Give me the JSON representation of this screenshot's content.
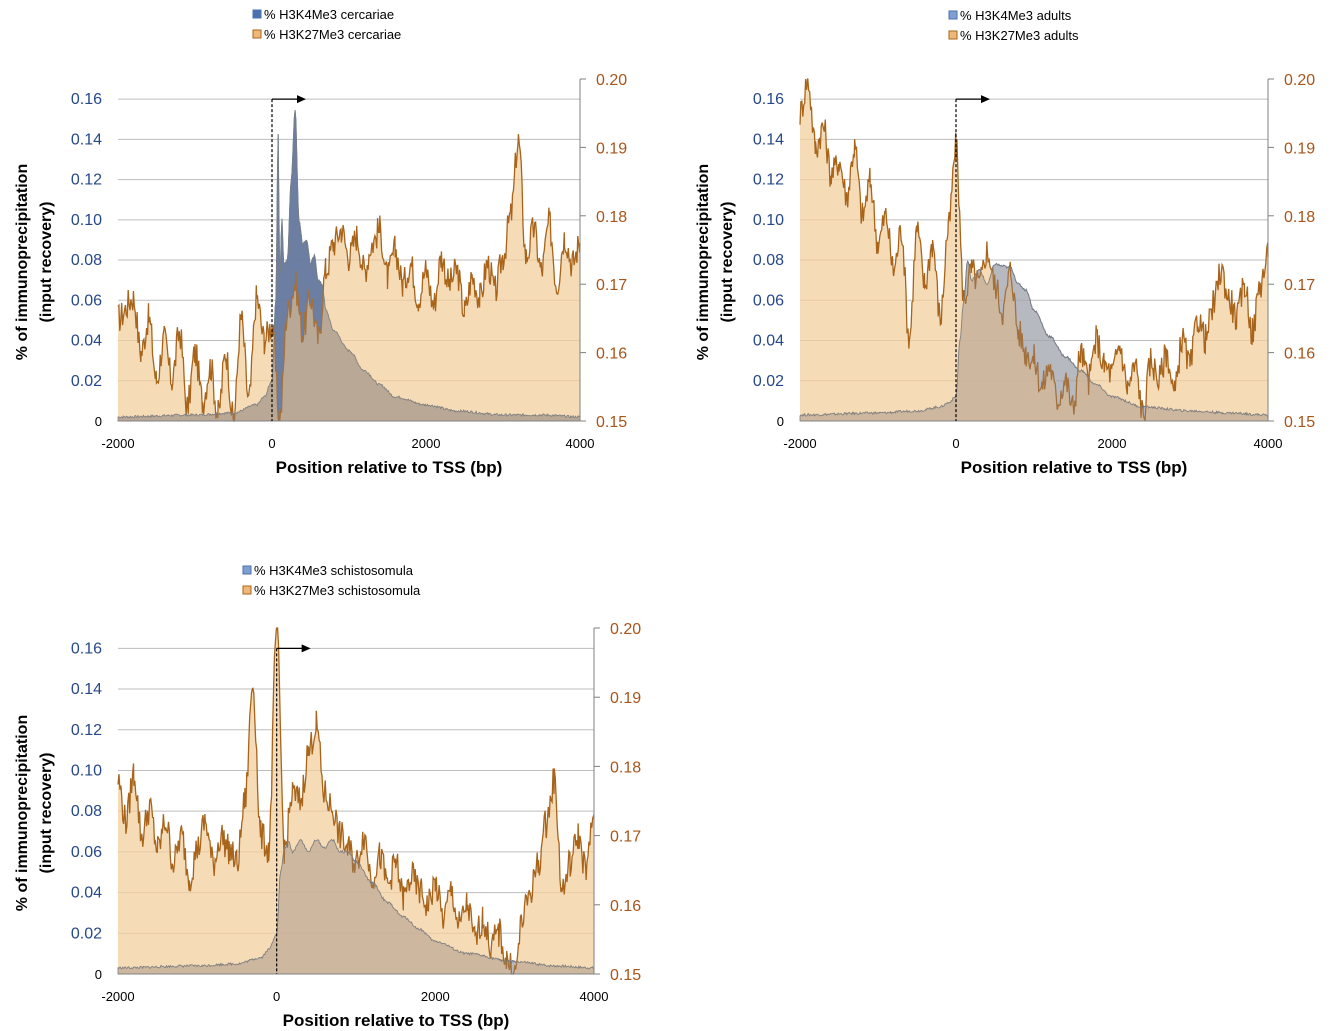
{
  "chart_data": [
    {
      "type": "area",
      "xlabel": "Position relative to TSS (bp)",
      "ylabel_line1": "% of immunoprecipitation",
      "ylabel_line2": "(input recovery)",
      "xlim": [
        -2000,
        4000
      ],
      "x_ticks": [
        "-2000",
        "0",
        "2000",
        "4000"
      ],
      "y_left_lim": [
        0,
        0.17
      ],
      "y_left_ticks": [
        "0",
        "0.02",
        "0.04",
        "0.06",
        "0.08",
        "0.10",
        "0.12",
        "0.14",
        "0.16"
      ],
      "y_right_lim": [
        0.15,
        0.2
      ],
      "y_right_ticks": [
        "0.15",
        "0.16",
        "0.17",
        "0.18",
        "0.19",
        "0.20"
      ],
      "grid": true,
      "legend_position": "top-center",
      "tss_arrow": true,
      "series": [
        {
          "name": "% H3K4Me3 cercariae",
          "axis": "left",
          "color": "#4a72b0",
          "fill": "#4a72b0",
          "x": [
            -2000,
            -1000,
            -500,
            -200,
            -100,
            0,
            50,
            80,
            100,
            130,
            150,
            200,
            250,
            300,
            350,
            400,
            450,
            500,
            550,
            600,
            650,
            700,
            800,
            1000,
            1200,
            1400,
            1600,
            2000,
            2400,
            3000,
            3500,
            4000
          ],
          "y": [
            0.002,
            0.003,
            0.004,
            0.008,
            0.012,
            0.02,
            0.06,
            0.143,
            0.07,
            0.1,
            0.078,
            0.08,
            0.12,
            0.155,
            0.1,
            0.088,
            0.09,
            0.078,
            0.082,
            0.07,
            0.068,
            0.055,
            0.045,
            0.035,
            0.025,
            0.018,
            0.012,
            0.008,
            0.005,
            0.003,
            0.003,
            0.002
          ]
        },
        {
          "name": "% H3K27Me3 cercariae",
          "axis": "right",
          "color": "#a8641a",
          "fill": "#f3cf9f",
          "x": [
            -2000,
            -1800,
            -1700,
            -1600,
            -1500,
            -1400,
            -1300,
            -1200,
            -1100,
            -1000,
            -900,
            -800,
            -700,
            -600,
            -500,
            -400,
            -300,
            -200,
            -100,
            0,
            100,
            200,
            300,
            400,
            500,
            600,
            700,
            800,
            900,
            1000,
            1100,
            1200,
            1300,
            1400,
            1500,
            1600,
            1700,
            1800,
            1900,
            2000,
            2100,
            2200,
            2300,
            2400,
            2500,
            2600,
            2700,
            2800,
            2900,
            3000,
            3100,
            3200,
            3300,
            3400,
            3500,
            3600,
            3700,
            3800,
            3900,
            4000
          ],
          "y": [
            0.165,
            0.168,
            0.16,
            0.165,
            0.156,
            0.162,
            0.156,
            0.163,
            0.152,
            0.16,
            0.153,
            0.158,
            0.151,
            0.16,
            0.15,
            0.165,
            0.153,
            0.168,
            0.162,
            0.164,
            0.15,
            0.166,
            0.17,
            0.163,
            0.168,
            0.162,
            0.172,
            0.176,
            0.178,
            0.174,
            0.177,
            0.172,
            0.176,
            0.178,
            0.171,
            0.175,
            0.17,
            0.173,
            0.168,
            0.172,
            0.167,
            0.174,
            0.17,
            0.172,
            0.166,
            0.171,
            0.168,
            0.173,
            0.169,
            0.174,
            0.18,
            0.191,
            0.174,
            0.178,
            0.172,
            0.179,
            0.17,
            0.177,
            0.173,
            0.176
          ]
        }
      ]
    },
    {
      "type": "area",
      "xlabel": "Position relative to TSS (bp)",
      "ylabel_line1": "% of immunoprecipitation",
      "ylabel_line2": "(input recovery)",
      "xlim": [
        -2000,
        4000
      ],
      "x_ticks": [
        "-2000",
        "0",
        "2000",
        "4000"
      ],
      "y_left_lim": [
        0,
        0.17
      ],
      "y_left_ticks": [
        "0",
        "0.02",
        "0.04",
        "0.06",
        "0.08",
        "0.10",
        "0.12",
        "0.14",
        "0.16"
      ],
      "y_right_lim": [
        0.15,
        0.2
      ],
      "y_right_ticks": [
        "0.15",
        "0.16",
        "0.17",
        "0.18",
        "0.19",
        "0.20"
      ],
      "grid": true,
      "legend_position": "top-center",
      "tss_arrow": true,
      "series": [
        {
          "name": "% H3K4Me3 adults",
          "axis": "left",
          "color": "#4a72b0",
          "fill": "#a9bcd6",
          "x": [
            -2000,
            -1000,
            -500,
            -200,
            -100,
            0,
            50,
            100,
            150,
            200,
            300,
            400,
            500,
            600,
            700,
            800,
            900,
            1000,
            1200,
            1400,
            1600,
            1800,
            2000,
            2400,
            3000,
            3500,
            4000
          ],
          "y": [
            0.003,
            0.004,
            0.005,
            0.007,
            0.009,
            0.012,
            0.04,
            0.06,
            0.08,
            0.07,
            0.075,
            0.068,
            0.078,
            0.077,
            0.076,
            0.068,
            0.065,
            0.055,
            0.042,
            0.032,
            0.025,
            0.018,
            0.012,
            0.007,
            0.005,
            0.004,
            0.003
          ]
        },
        {
          "name": "% H3K27Me3 adults",
          "axis": "right",
          "color": "#a8641a",
          "fill": "#f3cf9f",
          "x": [
            -2000,
            -1900,
            -1800,
            -1700,
            -1600,
            -1500,
            -1400,
            -1300,
            -1200,
            -1100,
            -1000,
            -900,
            -800,
            -700,
            -600,
            -500,
            -400,
            -300,
            -200,
            -100,
            0,
            100,
            200,
            300,
            400,
            500,
            600,
            700,
            800,
            900,
            1000,
            1100,
            1200,
            1300,
            1400,
            1500,
            1600,
            1700,
            1800,
            1900,
            2000,
            2100,
            2200,
            2300,
            2400,
            2500,
            2600,
            2700,
            2800,
            2900,
            3000,
            3100,
            3200,
            3300,
            3400,
            3500,
            3600,
            3700,
            3800,
            3900,
            4000
          ],
          "y": [
            0.195,
            0.2,
            0.19,
            0.193,
            0.186,
            0.188,
            0.183,
            0.19,
            0.18,
            0.185,
            0.176,
            0.18,
            0.172,
            0.178,
            0.162,
            0.178,
            0.17,
            0.176,
            0.165,
            0.178,
            0.19,
            0.168,
            0.172,
            0.17,
            0.175,
            0.17,
            0.166,
            0.172,
            0.163,
            0.16,
            0.159,
            0.155,
            0.158,
            0.153,
            0.156,
            0.152,
            0.16,
            0.156,
            0.162,
            0.158,
            0.157,
            0.161,
            0.155,
            0.158,
            0.151,
            0.159,
            0.156,
            0.16,
            0.154,
            0.162,
            0.158,
            0.165,
            0.162,
            0.167,
            0.172,
            0.168,
            0.165,
            0.17,
            0.163,
            0.17,
            0.174
          ]
        }
      ]
    },
    {
      "type": "area",
      "xlabel": "Position relative to TSS (bp)",
      "ylabel_line1": "% of immunoprecipitation",
      "ylabel_line2": "(input recovery)",
      "xlim": [
        -2000,
        4000
      ],
      "x_ticks": [
        "-2000",
        "0",
        "2000",
        "4000"
      ],
      "y_left_lim": [
        0,
        0.17
      ],
      "y_left_ticks": [
        "0",
        "0.02",
        "0.04",
        "0.06",
        "0.08",
        "0.10",
        "0.12",
        "0.14",
        "0.16"
      ],
      "y_right_lim": [
        0.15,
        0.2
      ],
      "y_right_ticks": [
        "0.15",
        "0.16",
        "0.17",
        "0.18",
        "0.19",
        "0.20"
      ],
      "grid": true,
      "legend_position": "top-center",
      "tss_arrow": true,
      "series": [
        {
          "name": "% H3K4Me3 schistosomula",
          "axis": "left",
          "color": "#4a72b0",
          "fill": "#a9bcd6",
          "x": [
            -2000,
            -1000,
            -500,
            -200,
            -100,
            0,
            50,
            100,
            150,
            200,
            300,
            400,
            500,
            600,
            700,
            800,
            900,
            1000,
            1200,
            1400,
            1600,
            1800,
            2000,
            2400,
            3000,
            3500,
            4000
          ],
          "y": [
            0.003,
            0.004,
            0.005,
            0.008,
            0.012,
            0.02,
            0.05,
            0.062,
            0.065,
            0.06,
            0.066,
            0.06,
            0.066,
            0.062,
            0.066,
            0.06,
            0.06,
            0.055,
            0.045,
            0.035,
            0.028,
            0.022,
            0.016,
            0.01,
            0.006,
            0.004,
            0.003
          ]
        },
        {
          "name": "% H3K27Me3 schistosomula",
          "axis": "right",
          "color": "#a8641a",
          "fill": "#f3cf9f",
          "x": [
            -2000,
            -1900,
            -1800,
            -1700,
            -1600,
            -1500,
            -1400,
            -1300,
            -1200,
            -1100,
            -1000,
            -900,
            -800,
            -700,
            -600,
            -500,
            -400,
            -300,
            -200,
            -100,
            0,
            100,
            200,
            300,
            400,
            500,
            600,
            700,
            800,
            900,
            1000,
            1100,
            1200,
            1300,
            1400,
            1500,
            1600,
            1700,
            1800,
            1900,
            2000,
            2100,
            2200,
            2300,
            2400,
            2500,
            2600,
            2700,
            2800,
            2900,
            3000,
            3100,
            3200,
            3300,
            3400,
            3500,
            3600,
            3700,
            3800,
            3900,
            4000
          ],
          "y": [
            0.178,
            0.172,
            0.179,
            0.17,
            0.174,
            0.168,
            0.172,
            0.166,
            0.17,
            0.164,
            0.168,
            0.172,
            0.166,
            0.17,
            0.168,
            0.166,
            0.175,
            0.192,
            0.17,
            0.168,
            0.2,
            0.168,
            0.176,
            0.175,
            0.182,
            0.186,
            0.176,
            0.174,
            0.17,
            0.168,
            0.166,
            0.17,
            0.164,
            0.167,
            0.163,
            0.166,
            0.161,
            0.164,
            0.162,
            0.16,
            0.163,
            0.158,
            0.162,
            0.157,
            0.16,
            0.155,
            0.158,
            0.154,
            0.156,
            0.152,
            0.15,
            0.158,
            0.162,
            0.166,
            0.172,
            0.178,
            0.162,
            0.166,
            0.17,
            0.165,
            0.173
          ]
        }
      ]
    }
  ]
}
